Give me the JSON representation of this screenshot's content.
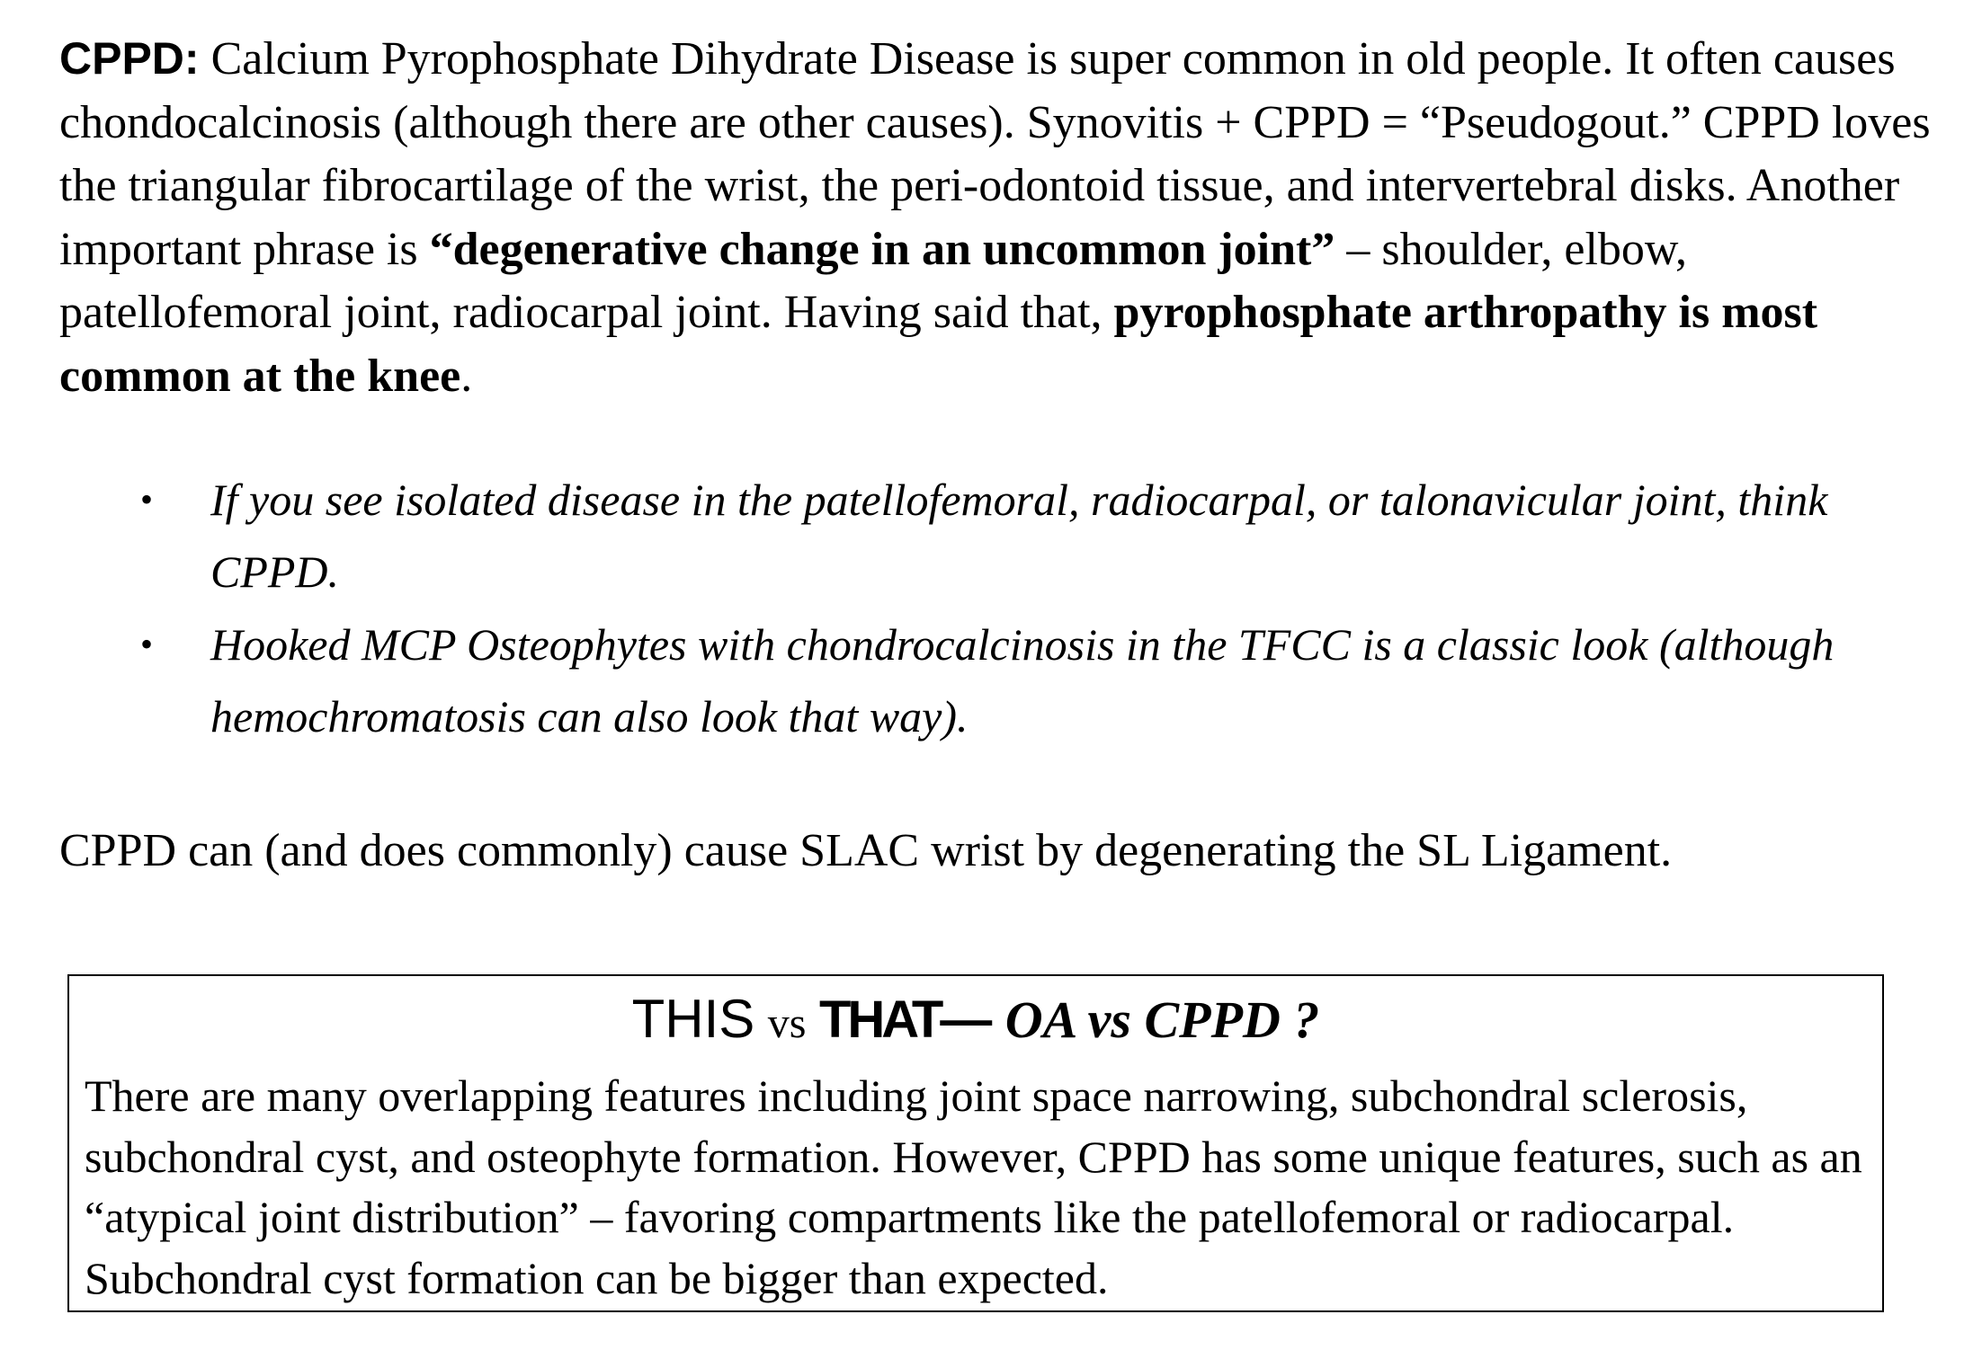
{
  "intro": {
    "lead": "CPPD:",
    "text1": " Calcium Pyrophosphate Dihydrate Disease is super common in old people.  It often causes chondocalcinosis (although there are other causes).  Synovitis  + CPPD = “Pseudogout.” CPPD loves the triangular fibrocartilage of the wrist, the peri-odontoid tissue, and intervertebral disks.   Another important phrase is ",
    "bold1": "“degenerative change in an uncommon joint”",
    "text2": " – shoulder, elbow, patellofemoral joint, radiocarpal joint. Having said that, ",
    "bold2": "pyrophosphate arthropathy is most common at the knee",
    "text3": "."
  },
  "bullets": [
    {
      "marker": "•",
      "text": "If you see isolated disease in the patellofemoral, radiocarpal, or talonavicular joint, think CPPD."
    },
    {
      "marker": "•",
      "text": "Hooked MCP Osteophytes with chondrocalcinosis in the TFCC is a classic look (although hemochromatosis can also look that way)."
    }
  ],
  "slac": "CPPD can (and does commonly) cause SLAC wrist by degenerating the SL Ligament.",
  "compare_box": {
    "heading_this": "THIS",
    "heading_vs": "vs",
    "heading_that": "THAT",
    "heading_dash": "—",
    "heading_topic": "OA vs CPPD ?",
    "body": "There are many overlapping features including joint space narrowing, subchondral sclerosis, subchondral cyst, and osteophyte formation.  However, CPPD has some unique features, such as an “atypical joint distribution” – favoring compartments like the patellofemoral or radiocarpal. Subchondral cyst formation can be bigger than expected."
  }
}
